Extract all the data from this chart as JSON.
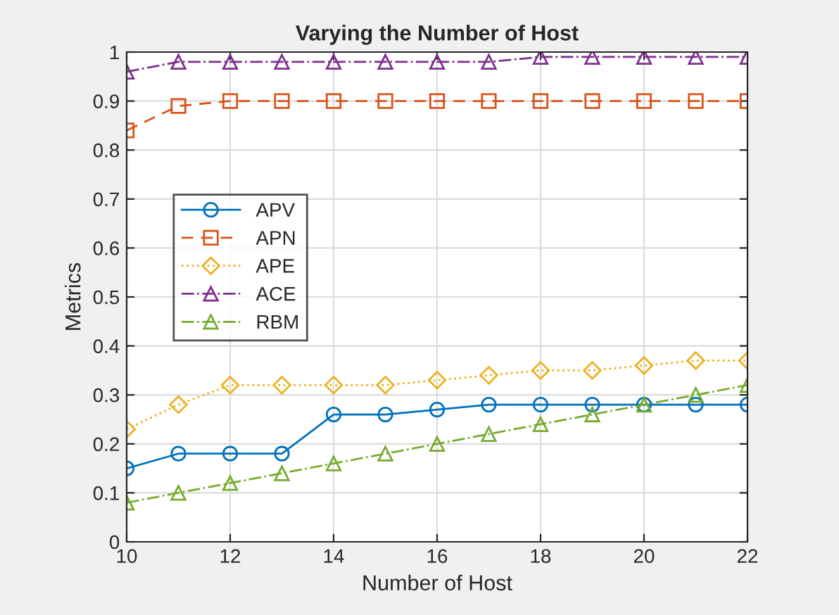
{
  "chart_data": {
    "type": "line",
    "title": "Varying the Number of Host",
    "xlabel": "Number of Host",
    "ylabel": "Metrics",
    "x": [
      10,
      11,
      12,
      13,
      14,
      15,
      16,
      17,
      18,
      19,
      20,
      21,
      22
    ],
    "series": [
      {
        "name": "APV",
        "color": "#0072bd",
        "marker": "circle",
        "line_style": "solid",
        "values": [
          0.15,
          0.18,
          0.18,
          0.18,
          0.26,
          0.26,
          0.27,
          0.28,
          0.28,
          0.28,
          0.28,
          0.28,
          0.28
        ]
      },
      {
        "name": "APN",
        "color": "#d95319",
        "marker": "square",
        "line_style": "dashed",
        "values": [
          0.84,
          0.89,
          0.9,
          0.9,
          0.9,
          0.9,
          0.9,
          0.9,
          0.9,
          0.9,
          0.9,
          0.9,
          0.9
        ]
      },
      {
        "name": "APE",
        "color": "#edb120",
        "marker": "diamond",
        "line_style": "dotted",
        "values": [
          0.23,
          0.28,
          0.32,
          0.32,
          0.32,
          0.32,
          0.33,
          0.34,
          0.35,
          0.35,
          0.36,
          0.37,
          0.37
        ]
      },
      {
        "name": "ACE",
        "color": "#7e2f8e",
        "marker": "triangle",
        "line_style": "dashdot",
        "values": [
          0.96,
          0.98,
          0.98,
          0.98,
          0.98,
          0.98,
          0.98,
          0.98,
          0.99,
          0.99,
          0.99,
          0.99,
          0.99
        ]
      },
      {
        "name": "RBM",
        "color": "#77ac30",
        "marker": "triangle",
        "line_style": "dashdot",
        "values": [
          0.08,
          0.1,
          0.12,
          0.14,
          0.16,
          0.18,
          0.2,
          0.22,
          0.24,
          0.26,
          0.28,
          0.3,
          0.32
        ]
      }
    ],
    "xlim": [
      10,
      22
    ],
    "xticks": [
      10,
      12,
      14,
      16,
      18,
      20,
      22
    ],
    "ylim": [
      0,
      1
    ],
    "yticks": [
      0,
      0.1,
      0.2,
      0.3,
      0.4,
      0.5,
      0.6,
      0.7,
      0.8,
      0.9,
      1
    ],
    "grid": true,
    "legend": "left"
  }
}
